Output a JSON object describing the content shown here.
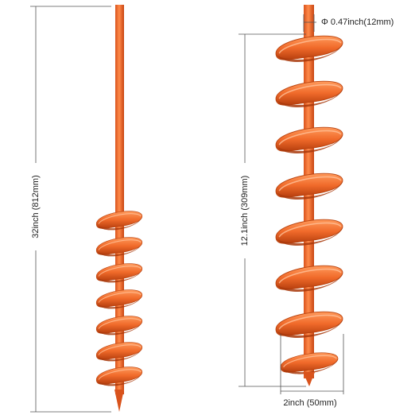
{
  "left_auger": {
    "length_label": "32inch (812mm)"
  },
  "right_auger": {
    "shaft_diameter_label": "Φ 0.47inch(12mm)",
    "spiral_length_label": "12.1inch (309mm)",
    "spiral_width_label": "2inch (50mm)"
  }
}
